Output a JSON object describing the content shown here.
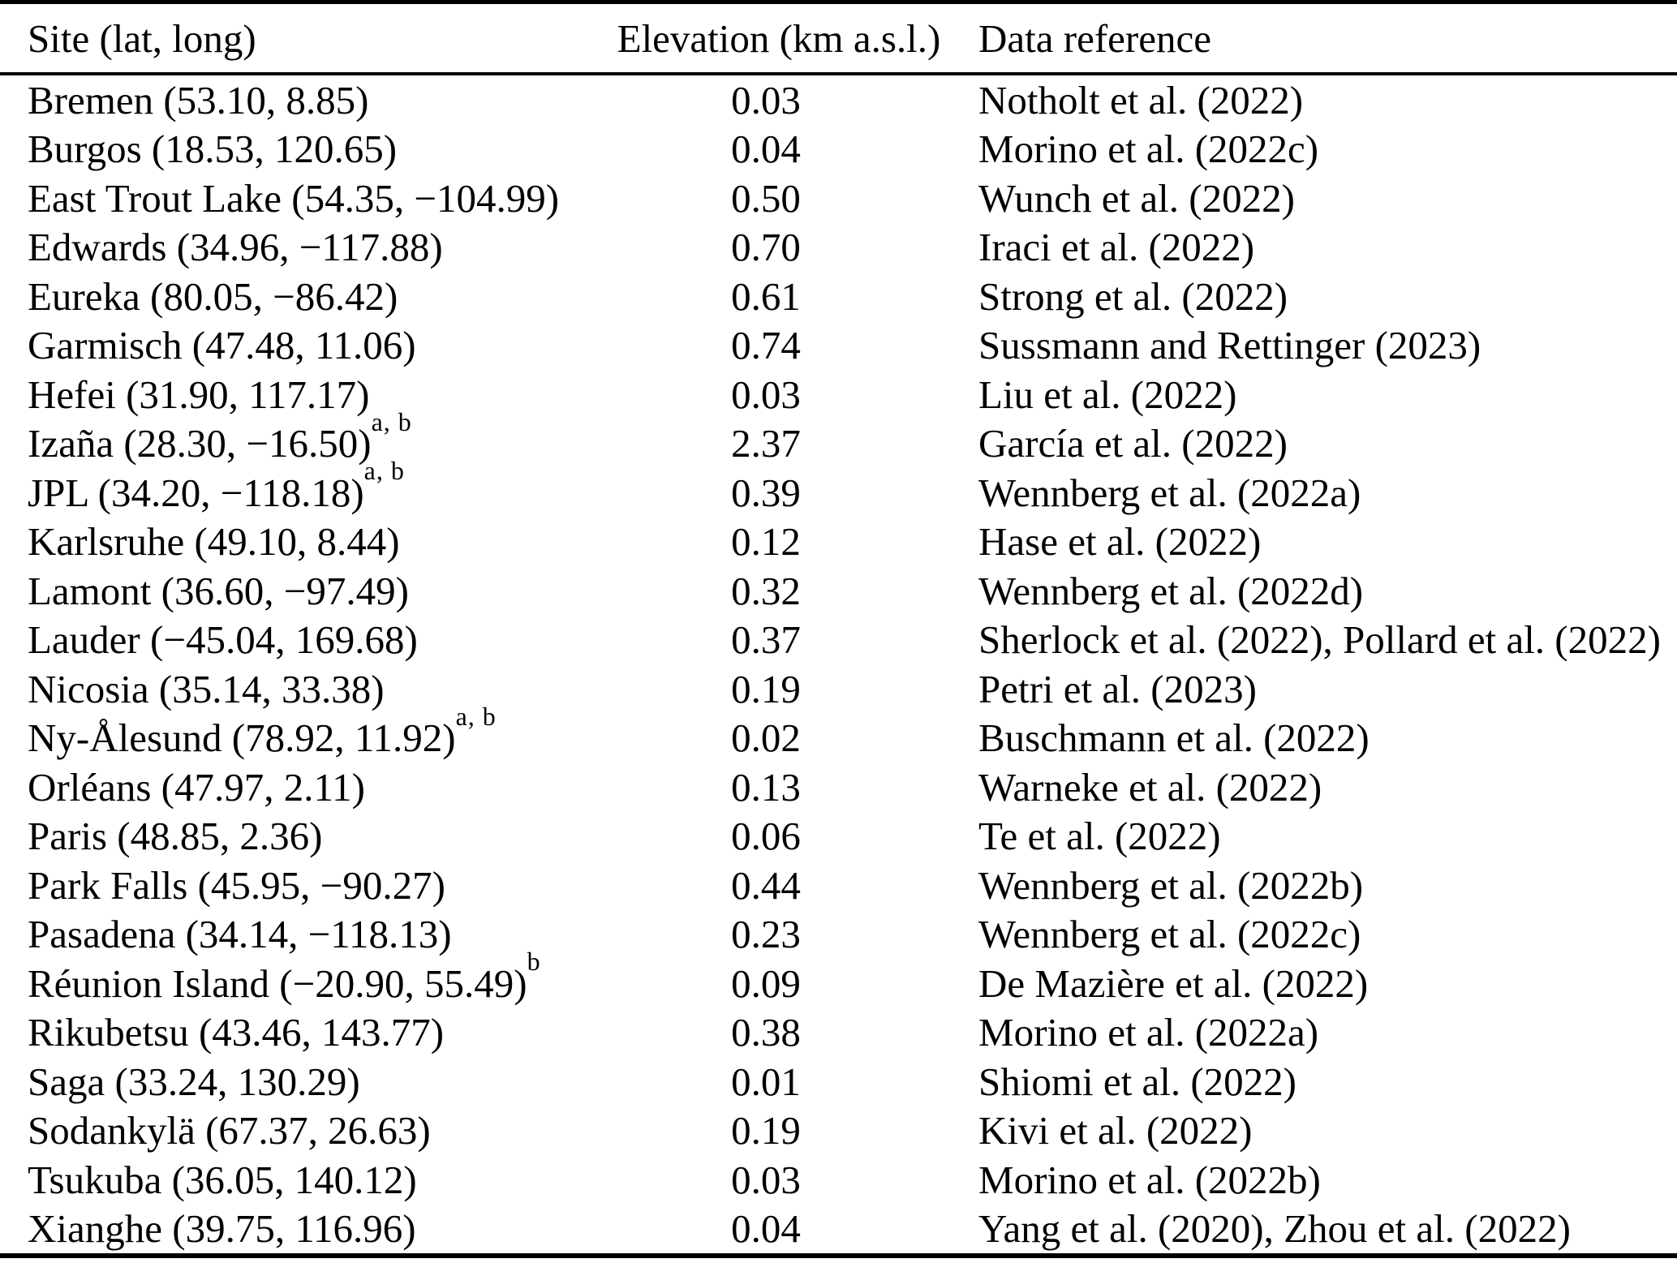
{
  "table": {
    "columns": [
      "Site (lat, long)",
      "Elevation (km a.s.l.)",
      "Data reference"
    ],
    "rows": [
      {
        "site": "Bremen (53.10, 8.85)",
        "sup": "",
        "elevation": "0.03",
        "reference": "Notholt et al. (2022)"
      },
      {
        "site": "Burgos (18.53, 120.65)",
        "sup": "",
        "elevation": "0.04",
        "reference": "Morino et al. (2022c)"
      },
      {
        "site": "East Trout Lake (54.35, −104.99)",
        "sup": "",
        "elevation": "0.50",
        "reference": "Wunch et al. (2022)"
      },
      {
        "site": "Edwards (34.96, −117.88)",
        "sup": "",
        "elevation": "0.70",
        "reference": "Iraci et al. (2022)"
      },
      {
        "site": "Eureka (80.05, −86.42)",
        "sup": "",
        "elevation": "0.61",
        "reference": "Strong et al. (2022)"
      },
      {
        "site": "Garmisch (47.48, 11.06)",
        "sup": "",
        "elevation": "0.74",
        "reference": "Sussmann and Rettinger (2023)"
      },
      {
        "site": "Hefei (31.90, 117.17)",
        "sup": "",
        "elevation": "0.03",
        "reference": "Liu et al. (2022)"
      },
      {
        "site": "Izaña (28.30, −16.50)",
        "sup": "a, b",
        "elevation": "2.37",
        "reference": "García et al. (2022)"
      },
      {
        "site": "JPL (34.20, −118.18)",
        "sup": "a, b",
        "elevation": "0.39",
        "reference": "Wennberg et al. (2022a)"
      },
      {
        "site": "Karlsruhe (49.10, 8.44)",
        "sup": "",
        "elevation": "0.12",
        "reference": "Hase et al. (2022)"
      },
      {
        "site": "Lamont (36.60, −97.49)",
        "sup": "",
        "elevation": "0.32",
        "reference": "Wennberg et al. (2022d)"
      },
      {
        "site": "Lauder (−45.04, 169.68)",
        "sup": "",
        "elevation": "0.37",
        "reference": "Sherlock et al. (2022), Pollard et al. (2022)"
      },
      {
        "site": "Nicosia (35.14, 33.38)",
        "sup": "",
        "elevation": "0.19",
        "reference": "Petri et al. (2023)"
      },
      {
        "site": "Ny-Ålesund (78.92, 11.92)",
        "sup": "a, b",
        "elevation": "0.02",
        "reference": "Buschmann et al. (2022)"
      },
      {
        "site": "Orléans (47.97, 2.11)",
        "sup": "",
        "elevation": "0.13",
        "reference": "Warneke et al. (2022)"
      },
      {
        "site": "Paris (48.85, 2.36)",
        "sup": "",
        "elevation": "0.06",
        "reference": "Te et al. (2022)"
      },
      {
        "site": "Park Falls (45.95, −90.27)",
        "sup": "",
        "elevation": "0.44",
        "reference": "Wennberg et al. (2022b)"
      },
      {
        "site": "Pasadena (34.14, −118.13)",
        "sup": "",
        "elevation": "0.23",
        "reference": "Wennberg et al. (2022c)"
      },
      {
        "site": "Réunion Island (−20.90, 55.49)",
        "sup": "b",
        "elevation": "0.09",
        "reference": "De Mazière et al. (2022)"
      },
      {
        "site": "Rikubetsu (43.46, 143.77)",
        "sup": "",
        "elevation": "0.38",
        "reference": "Morino et al. (2022a)"
      },
      {
        "site": "Saga (33.24, 130.29)",
        "sup": "",
        "elevation": "0.01",
        "reference": "Shiomi et al. (2022)"
      },
      {
        "site": "Sodankylä (67.37, 26.63)",
        "sup": "",
        "elevation": "0.19",
        "reference": "Kivi et al. (2022)"
      },
      {
        "site": "Tsukuba (36.05, 140.12)",
        "sup": "",
        "elevation": "0.03",
        "reference": "Morino et al. (2022b)"
      },
      {
        "site": "Xianghe (39.75, 116.96)",
        "sup": "",
        "elevation": "0.04",
        "reference": "Yang et al. (2020), Zhou et al. (2022)"
      }
    ]
  }
}
